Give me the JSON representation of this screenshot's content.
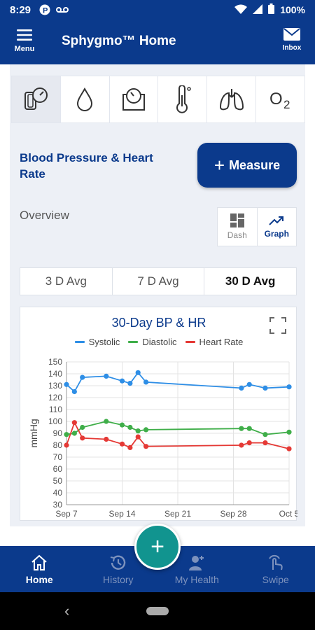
{
  "status": {
    "time": "8:29",
    "battery": "100%"
  },
  "appbar": {
    "menu_label": "Menu",
    "title": "Sphygmo™ Home",
    "inbox_label": "Inbox"
  },
  "measurement_types": [
    {
      "icon": "blood-pressure-icon",
      "active": true
    },
    {
      "icon": "drop-icon"
    },
    {
      "icon": "scale-icon"
    },
    {
      "icon": "thermometer-icon"
    },
    {
      "icon": "lungs-icon"
    },
    {
      "icon": "oxygen-icon",
      "text": "O",
      "sub": "2"
    }
  ],
  "section": {
    "title": "Blood Pressure & Heart Rate",
    "measure_label": "Measure"
  },
  "overview": {
    "label": "Overview",
    "dash_label": "Dash",
    "graph_label": "Graph",
    "selected": "Graph"
  },
  "avg_tabs": [
    "3 D Avg",
    "7 D Avg",
    "30 D Avg"
  ],
  "avg_selected": "30 D Avg",
  "chart_data": {
    "type": "line",
    "title": "30-Day BP & HR",
    "ylabel": "mmHg",
    "ylim": [
      30,
      150
    ],
    "yticks": [
      150,
      140,
      130,
      120,
      110,
      100,
      90,
      80,
      70,
      60,
      50,
      40,
      30
    ],
    "xlim_days": [
      0,
      28
    ],
    "xticks": [
      {
        "day": 0,
        "label": "Sep 7"
      },
      {
        "day": 7,
        "label": "Sep 14"
      },
      {
        "day": 14,
        "label": "Sep 21"
      },
      {
        "day": 21,
        "label": "Sep 28"
      },
      {
        "day": 28,
        "label": "Oct 5"
      }
    ],
    "grid": true,
    "legend_position": "top",
    "series": [
      {
        "name": "Systolic",
        "color": "#2e8ee6",
        "points": [
          [
            0,
            131
          ],
          [
            1,
            125
          ],
          [
            2,
            137
          ],
          [
            5,
            138
          ],
          [
            7,
            134
          ],
          [
            8,
            132
          ],
          [
            9,
            141
          ],
          [
            10,
            133
          ],
          [
            22,
            128
          ],
          [
            23,
            131
          ],
          [
            25,
            128
          ],
          [
            28,
            129
          ]
        ]
      },
      {
        "name": "Diastolic",
        "color": "#3fae49",
        "points": [
          [
            0,
            89
          ],
          [
            1,
            90
          ],
          [
            2,
            95
          ],
          [
            5,
            100
          ],
          [
            7,
            97
          ],
          [
            8,
            95
          ],
          [
            9,
            92
          ],
          [
            10,
            93
          ],
          [
            22,
            94
          ],
          [
            23,
            94
          ],
          [
            25,
            89
          ],
          [
            28,
            91
          ]
        ]
      },
      {
        "name": "Heart Rate",
        "color": "#e53935",
        "points": [
          [
            0,
            80
          ],
          [
            1,
            99
          ],
          [
            2,
            86
          ],
          [
            5,
            85
          ],
          [
            7,
            81
          ],
          [
            8,
            78
          ],
          [
            9,
            87
          ],
          [
            10,
            79
          ],
          [
            22,
            80
          ],
          [
            23,
            82
          ],
          [
            25,
            82
          ],
          [
            28,
            77
          ]
        ]
      }
    ]
  },
  "bottom_nav": [
    {
      "label": "Home",
      "icon": "home-icon",
      "active": true
    },
    {
      "label": "History",
      "icon": "history-icon"
    },
    {
      "label": "My Health",
      "icon": "my-health-icon"
    },
    {
      "label": "Swipe",
      "icon": "swipe-icon"
    }
  ],
  "colors": {
    "primary": "#0b3a8c",
    "accent": "#11948f",
    "systolic": "#2e8ee6",
    "diastolic": "#3fae49",
    "heart_rate": "#e53935"
  }
}
